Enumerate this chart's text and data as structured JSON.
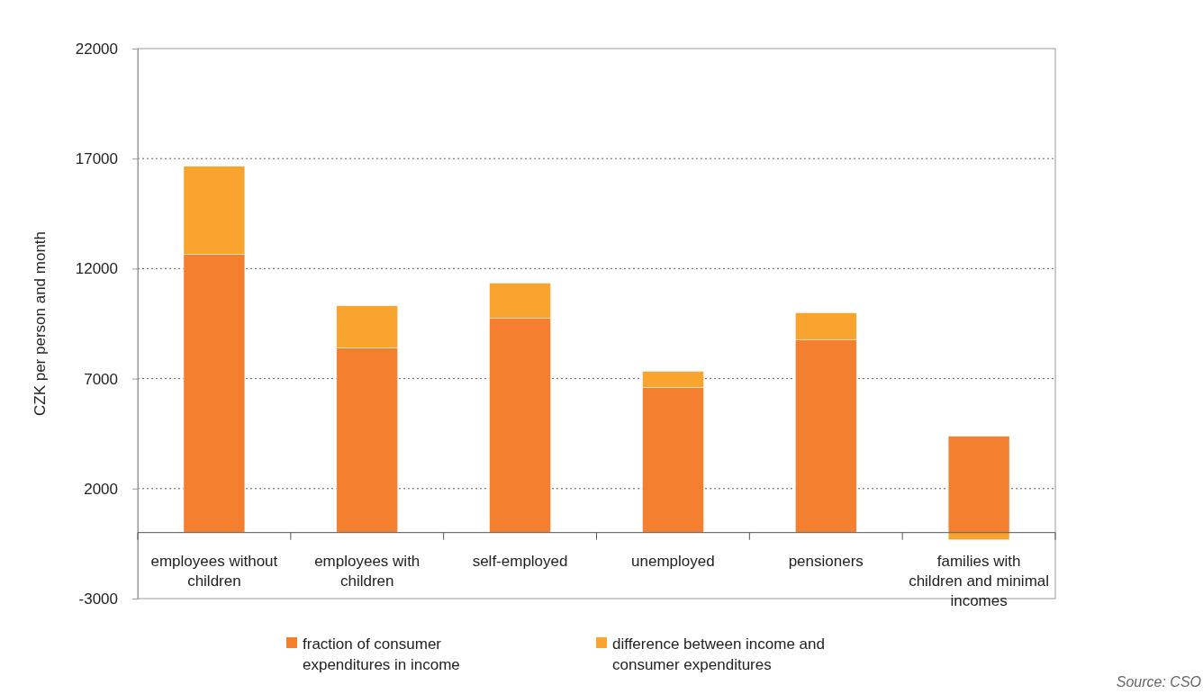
{
  "chart_data": {
    "type": "bar",
    "ylabel": "CZK per person and month",
    "stacked": true,
    "categories": [
      "employees without children",
      "employees with children",
      "self-employed",
      "unemployed",
      "pensioners",
      "families with children and minimal incomes"
    ],
    "series": [
      {
        "name": "fraction of consumer expenditures in income",
        "color": "#f47f2e",
        "values": [
          12650,
          8390,
          9740,
          6590,
          8760,
          4380
        ]
      },
      {
        "name": "difference between income and consumer expenditures",
        "color": "#f9a42f",
        "values": [
          4000,
          1920,
          1600,
          740,
          1230,
          -330
        ]
      }
    ],
    "ylim": [
      -3000,
      22000
    ],
    "yticks": [
      -3000,
      2000,
      7000,
      12000,
      17000,
      22000
    ],
    "grid": "y",
    "legend": "bottom",
    "annotations": [
      "Source: CSO"
    ]
  }
}
